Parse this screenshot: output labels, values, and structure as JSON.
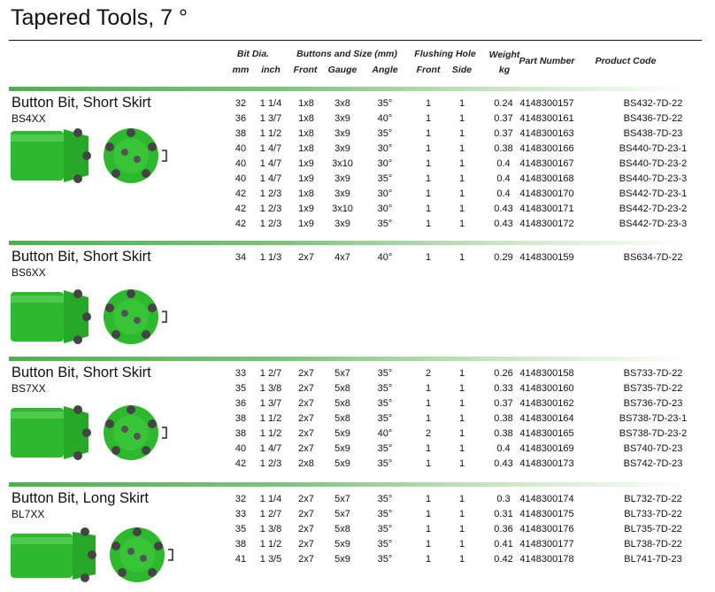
{
  "title": "Tapered Tools, 7 °",
  "headers": {
    "bit_dia": "Bit Dia.",
    "mm": "mm",
    "inch": "inch",
    "buttons": "Buttons and Size (mm)",
    "front": "Front",
    "gauge": "Gauge",
    "angle": "Angle",
    "flushing": "Flushing Hole",
    "f_front": "Front",
    "side": "Side",
    "weight": "Weight",
    "kg": "kg",
    "part": "Part Number",
    "code": "Product Code"
  },
  "colors": {
    "accent": "#4fb04f",
    "bit": "#2db82d"
  },
  "sections": [
    {
      "title": "Button Bit, Short Skirt",
      "code": "BS4XX",
      "rows": [
        [
          "32",
          "1 1/4",
          "1x8",
          "3x8",
          "35°",
          "1",
          "1",
          "0.24",
          "4148300157",
          "BS432-7D-22"
        ],
        [
          "36",
          "1 3/7",
          "1x8",
          "3x9",
          "40°",
          "1",
          "1",
          "0.37",
          "4148300161",
          "BS436-7D-22"
        ],
        [
          "38",
          "1 1/2",
          "1x8",
          "3x9",
          "35°",
          "1",
          "1",
          "0.37",
          "4148300163",
          "BS438-7D-23"
        ],
        [
          "40",
          "1 4/7",
          "1x8",
          "3x9",
          "30°",
          "1",
          "1",
          "0.38",
          "4148300166",
          "BS440-7D-23-1"
        ],
        [
          "40",
          "1 4/7",
          "1x9",
          "3x10",
          "30°",
          "1",
          "1",
          "0.4",
          "4148300167",
          "BS440-7D-23-2"
        ],
        [
          "40",
          "1 4/7",
          "1x9",
          "3x9",
          "35°",
          "1",
          "1",
          "0.4",
          "4148300168",
          "BS440-7D-23-3"
        ],
        [
          "42",
          "1 2/3",
          "1x8",
          "3x9",
          "30°",
          "1",
          "1",
          "0.4",
          "4148300170",
          "BS442-7D-23-1"
        ],
        [
          "42",
          "1 2/3",
          "1x9",
          "3x10",
          "30°",
          "1",
          "1",
          "0.43",
          "4148300171",
          "BS442-7D-23-2"
        ],
        [
          "42",
          "1 2/3",
          "1x9",
          "3x9",
          "35°",
          "1",
          "1",
          "0.43",
          "4148300172",
          "BS442-7D-23-3"
        ]
      ]
    },
    {
      "title": "Button Bit, Short Skirt",
      "code": "BS6XX",
      "rows": [
        [
          "34",
          "1 1/3",
          "2x7",
          "4x7",
          "40°",
          "1",
          "1",
          "0.29",
          "4148300159",
          "BS634-7D-22"
        ]
      ]
    },
    {
      "title": "Button Bit, Short Skirt",
      "code": "BS7XX",
      "rows": [
        [
          "33",
          "1 2/7",
          "2x7",
          "5x7",
          "35°",
          "2",
          "1",
          "0.26",
          "4148300158",
          "BS733-7D-22"
        ],
        [
          "35",
          "1 3/8",
          "2x7",
          "5x8",
          "35°",
          "1",
          "1",
          "0.33",
          "4148300160",
          "BS735-7D-22"
        ],
        [
          "36",
          "1 3/7",
          "2x7",
          "5x8",
          "35°",
          "1",
          "1",
          "0.37",
          "4148300162",
          "BS736-7D-23"
        ],
        [
          "38",
          "1 1/2",
          "2x7",
          "5x8",
          "35°",
          "1",
          "1",
          "0.38",
          "4148300164",
          "BS738-7D-23-1"
        ],
        [
          "38",
          "1 1/2",
          "2x7",
          "5x9",
          "40°",
          "2",
          "1",
          "0.38",
          "4148300165",
          "BS738-7D-23-2"
        ],
        [
          "40",
          "1 4/7",
          "2x7",
          "5x9",
          "35°",
          "1",
          "1",
          "0.4",
          "4148300169",
          "BS740-7D-23"
        ],
        [
          "42",
          "1 2/3",
          "2x8",
          "5x9",
          "35°",
          "1",
          "1",
          "0.43",
          "4148300173",
          "BS742-7D-23"
        ]
      ]
    },
    {
      "title": "Button Bit, Long Skirt",
      "code": "BL7XX",
      "rows": [
        [
          "32",
          "1 1/4",
          "2x7",
          "5x7",
          "35°",
          "1",
          "1",
          "0.3",
          "4148300174",
          "BL732-7D-22"
        ],
        [
          "33",
          "1 2/7",
          "2x7",
          "5x7",
          "35°",
          "1",
          "1",
          "0.31",
          "4148300175",
          "BL733-7D-22"
        ],
        [
          "35",
          "1 3/8",
          "2x7",
          "5x8",
          "35°",
          "1",
          "1",
          "0.36",
          "4148300176",
          "BL735-7D-22"
        ],
        [
          "38",
          "1 1/2",
          "2x7",
          "5x9",
          "35°",
          "1",
          "1",
          "0.41",
          "4148300177",
          "BL738-7D-22"
        ],
        [
          "41",
          "1 3/5",
          "2x7",
          "5x9",
          "35°",
          "1",
          "1",
          "0.42",
          "4148300178",
          "BL741-7D-23"
        ]
      ]
    }
  ]
}
